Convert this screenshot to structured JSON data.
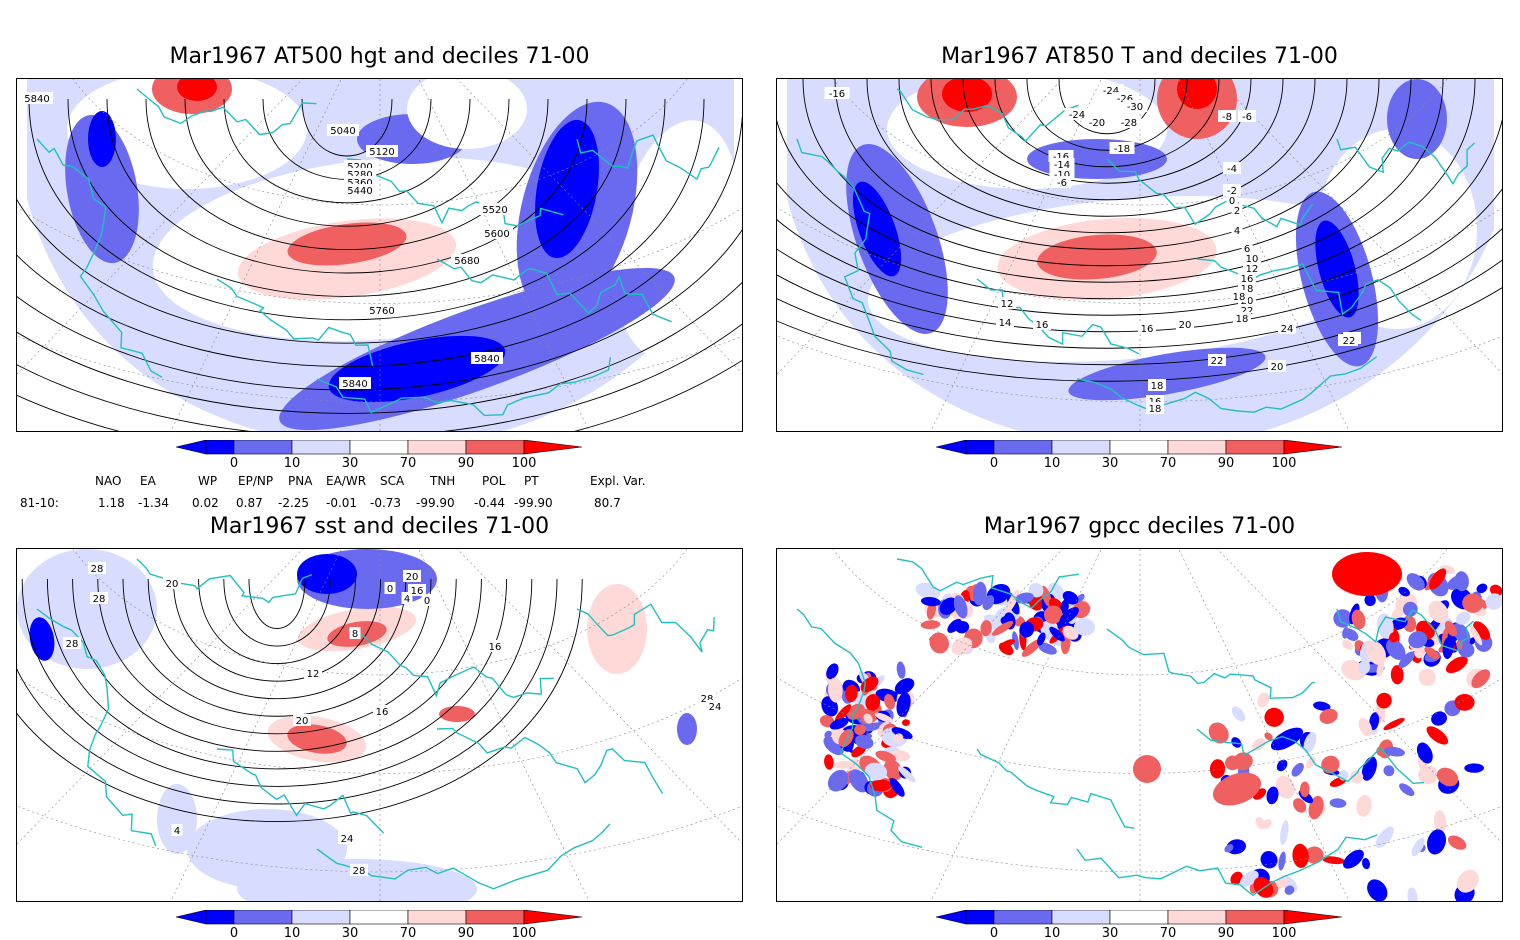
{
  "colors": {
    "map_border": "#000000",
    "coast": "#20c0c0",
    "contour": "#000000",
    "shade_0_10": "#0000ff",
    "shade_10_30": "#6a6af0",
    "shade_30_50": "#d8dcff",
    "shade_70_90": "#ffd8d8",
    "shade_90_100": "#f06060",
    "shade_100": "#ff0000"
  },
  "colorbar": {
    "ticks": [
      "0",
      "10",
      "30",
      "70",
      "90",
      "100"
    ]
  },
  "panels": [
    {
      "id": "z500",
      "title": "Mar1967 AT500 hgt and deciles 71-00",
      "contour_labels": [
        "5840",
        "5040",
        "5120",
        "5200",
        "5280",
        "5360",
        "5440",
        "5520",
        "5600",
        "5680",
        "5760",
        "5840",
        "5840"
      ]
    },
    {
      "id": "t850",
      "title": "Mar1967 AT850 T and deciles 71-00",
      "contour_labels": [
        "-16",
        "-24",
        "-26",
        "-30",
        "-24",
        "-20",
        "-28",
        "-16",
        "-18",
        "-14",
        "-10",
        "-6",
        "-8",
        "-6",
        "-4",
        "-2",
        "0",
        "2",
        "4",
        "6",
        "10",
        "12",
        "16",
        "18",
        "20",
        "22",
        "12",
        "14",
        "16",
        "18",
        "20",
        "18",
        "16",
        "20",
        "24",
        "20",
        "22",
        "22",
        "20",
        "18",
        "16",
        "18"
      ]
    },
    {
      "id": "sst",
      "title": "Mar1967 sst and deciles 71-00",
      "contour_labels": [
        "28",
        "20",
        "28",
        "28",
        "0",
        "4",
        "8",
        "12",
        "16",
        "20",
        "24",
        "28",
        "28",
        "24",
        "16",
        "20",
        "16",
        "0",
        "4",
        "28"
      ]
    },
    {
      "id": "gpcc",
      "title": "Mar1967 gpcc deciles 71-00",
      "contour_labels": []
    }
  ],
  "indices": {
    "headers": [
      "NAO",
      "EA",
      "WP",
      "EP/NP",
      "PNA",
      "EA/WR",
      "SCA",
      "TNH",
      "POL",
      "PT",
      "Expl. Var."
    ],
    "row_label": "81-10:",
    "values": [
      "1.18",
      "-1.34",
      "0.02",
      "0.87",
      "-2.25",
      "-0.01",
      "-0.73",
      "-99.90",
      "-0.44",
      "-99.90",
      "80.7"
    ]
  }
}
